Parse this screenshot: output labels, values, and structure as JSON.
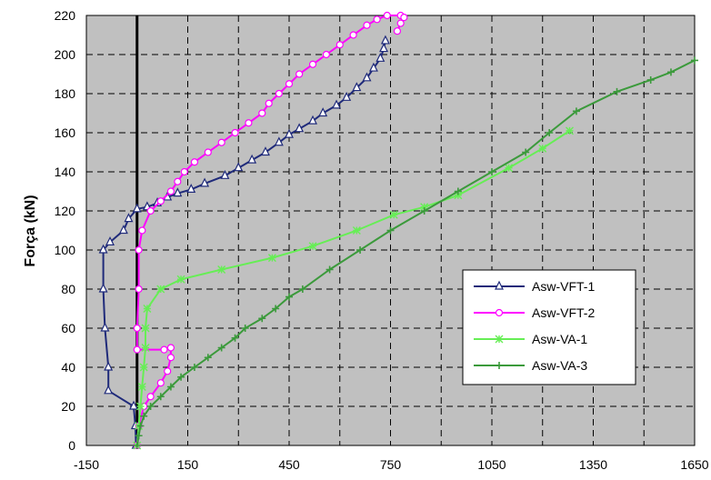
{
  "chart_data": {
    "type": "line",
    "ylabel": "Força (kN)",
    "xlabel": "",
    "xlim": [
      -150,
      1650
    ],
    "ylim": [
      0,
      220
    ],
    "xticks": [
      -150,
      150,
      450,
      750,
      1050,
      1350,
      1650
    ],
    "yticks": [
      0,
      20,
      40,
      60,
      80,
      100,
      120,
      140,
      160,
      180,
      200,
      220
    ],
    "x_gridlines": [
      -150,
      0,
      150,
      300,
      450,
      600,
      750,
      900,
      1050,
      1200,
      1350,
      1500,
      1650
    ],
    "vertical_reference_x": 0,
    "grid": true,
    "plot_background": "#c0c0c0",
    "legend_position": "right",
    "series": [
      {
        "name": "Asw-VFT-1",
        "color": "#1f2a7a",
        "marker": "triangle",
        "points": [
          [
            -3,
            0
          ],
          [
            -5,
            10
          ],
          [
            -10,
            20
          ],
          [
            -85,
            28
          ],
          [
            -85,
            40
          ],
          [
            -95,
            60
          ],
          [
            -100,
            80
          ],
          [
            -100,
            100
          ],
          [
            -80,
            104
          ],
          [
            -40,
            110
          ],
          [
            -25,
            116
          ],
          [
            0,
            121
          ],
          [
            30,
            122
          ],
          [
            60,
            124
          ],
          [
            90,
            127
          ],
          [
            120,
            129
          ],
          [
            160,
            131
          ],
          [
            200,
            134
          ],
          [
            260,
            138
          ],
          [
            300,
            142
          ],
          [
            340,
            146
          ],
          [
            380,
            150
          ],
          [
            420,
            155
          ],
          [
            450,
            159
          ],
          [
            480,
            162
          ],
          [
            520,
            166
          ],
          [
            550,
            170
          ],
          [
            590,
            174
          ],
          [
            620,
            178
          ],
          [
            650,
            183
          ],
          [
            680,
            188
          ],
          [
            700,
            193
          ],
          [
            720,
            198
          ],
          [
            730,
            203
          ],
          [
            735,
            207
          ]
        ]
      },
      {
        "name": "Asw-VFT-2",
        "color": "#ff00ff",
        "marker": "circle",
        "points": [
          [
            0,
            0
          ],
          [
            5,
            10
          ],
          [
            20,
            20
          ],
          [
            40,
            25
          ],
          [
            70,
            32
          ],
          [
            90,
            38
          ],
          [
            100,
            45
          ],
          [
            100,
            50
          ],
          [
            80,
            49
          ],
          [
            0,
            49
          ],
          [
            0,
            60
          ],
          [
            5,
            80
          ],
          [
            5,
            100
          ],
          [
            15,
            110
          ],
          [
            40,
            120
          ],
          [
            70,
            125
          ],
          [
            100,
            130
          ],
          [
            120,
            135
          ],
          [
            140,
            140
          ],
          [
            170,
            145
          ],
          [
            210,
            150
          ],
          [
            250,
            155
          ],
          [
            290,
            160
          ],
          [
            330,
            165
          ],
          [
            370,
            170
          ],
          [
            390,
            175
          ],
          [
            420,
            180
          ],
          [
            450,
            185
          ],
          [
            480,
            190
          ],
          [
            520,
            195
          ],
          [
            560,
            200
          ],
          [
            600,
            205
          ],
          [
            640,
            210
          ],
          [
            680,
            215
          ],
          [
            710,
            218
          ],
          [
            740,
            220
          ],
          [
            780,
            220
          ],
          [
            790,
            219
          ],
          [
            780,
            216
          ],
          [
            770,
            212
          ]
        ]
      },
      {
        "name": "Asw-VA-1",
        "color": "#66ee55",
        "marker": "star",
        "points": [
          [
            0,
            0
          ],
          [
            5,
            10
          ],
          [
            10,
            20
          ],
          [
            15,
            30
          ],
          [
            20,
            40
          ],
          [
            25,
            50
          ],
          [
            25,
            60
          ],
          [
            30,
            70
          ],
          [
            70,
            80
          ],
          [
            130,
            85
          ],
          [
            250,
            90
          ],
          [
            400,
            96
          ],
          [
            520,
            102
          ],
          [
            650,
            110
          ],
          [
            760,
            118
          ],
          [
            850,
            122
          ],
          [
            950,
            128
          ],
          [
            1100,
            142
          ],
          [
            1200,
            152
          ],
          [
            1280,
            161
          ]
        ]
      },
      {
        "name": "Asw-VA-3",
        "color": "#3b9a3b",
        "marker": "plus",
        "points": [
          [
            0,
            0
          ],
          [
            5,
            5
          ],
          [
            10,
            10
          ],
          [
            20,
            15
          ],
          [
            40,
            20
          ],
          [
            70,
            25
          ],
          [
            100,
            30
          ],
          [
            130,
            35
          ],
          [
            170,
            40
          ],
          [
            210,
            45
          ],
          [
            250,
            50
          ],
          [
            290,
            55
          ],
          [
            320,
            60
          ],
          [
            370,
            65
          ],
          [
            410,
            70
          ],
          [
            450,
            76
          ],
          [
            490,
            80
          ],
          [
            570,
            90
          ],
          [
            660,
            100
          ],
          [
            750,
            110
          ],
          [
            850,
            120
          ],
          [
            950,
            130
          ],
          [
            1050,
            140
          ],
          [
            1150,
            150
          ],
          [
            1220,
            160
          ],
          [
            1300,
            171
          ],
          [
            1420,
            181
          ],
          [
            1520,
            187
          ],
          [
            1580,
            191
          ],
          [
            1650,
            197
          ]
        ]
      }
    ]
  }
}
